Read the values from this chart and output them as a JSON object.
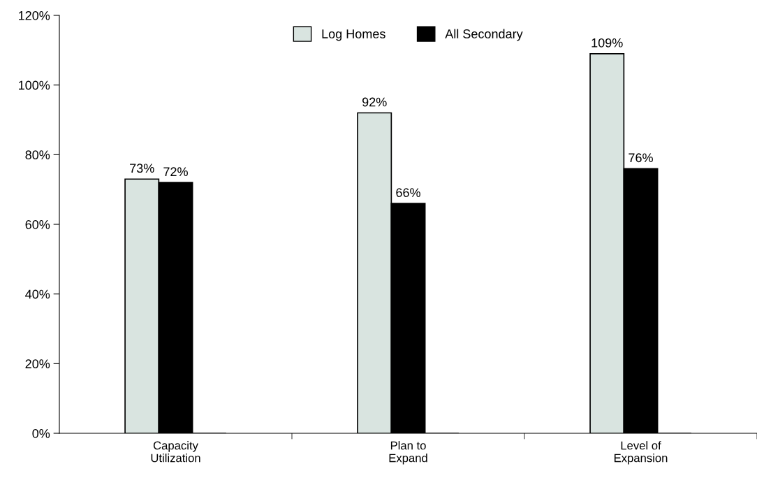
{
  "chart_data": {
    "type": "bar",
    "categories": [
      "Capacity\nUtilization",
      "Plan to\nExpand",
      "Level of\nExpansion"
    ],
    "series": [
      {
        "name": "Log Homes",
        "color": "#d9e4e0",
        "values": [
          73,
          92,
          109
        ],
        "value_labels": [
          "73%",
          "92%",
          "109%"
        ]
      },
      {
        "name": "All Secondary",
        "color": "#000000",
        "values": [
          72,
          66,
          76
        ],
        "value_labels": [
          "72%",
          "66%",
          "76%"
        ]
      },
      {
        "color": "#000000",
        "values": [
          0,
          0,
          0
        ]
      }
    ],
    "ylim": [
      0,
      120
    ],
    "yticks": [
      {
        "value": 0,
        "label": "0%"
      },
      {
        "value": 20,
        "label": "20%"
      },
      {
        "value": 40,
        "label": "40%"
      },
      {
        "value": 60,
        "label": "60%"
      },
      {
        "value": 80,
        "label": "80%"
      },
      {
        "value": 100,
        "label": "100%"
      },
      {
        "value": 120,
        "label": "120%"
      }
    ],
    "grid": false,
    "legend": "top"
  }
}
